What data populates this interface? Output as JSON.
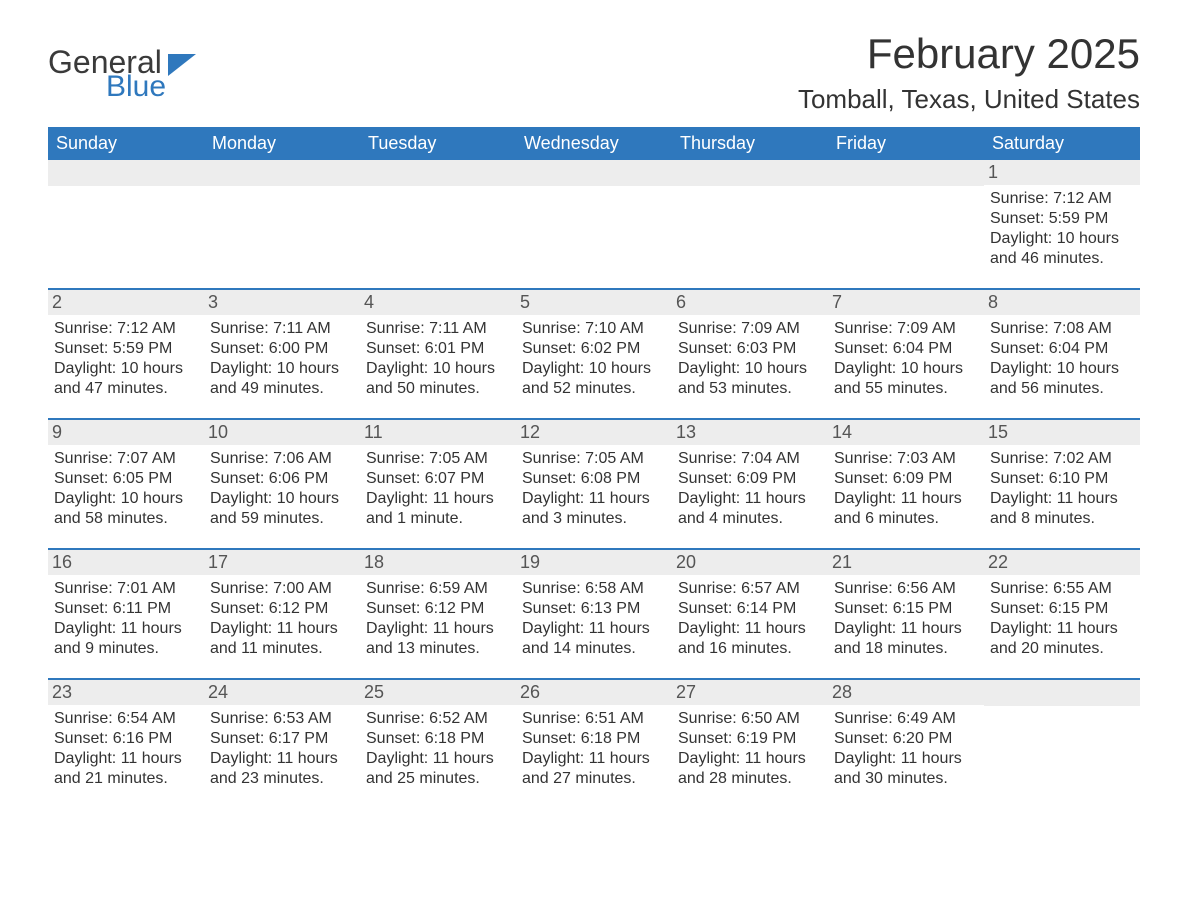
{
  "logo": {
    "text_main": "General",
    "text_sub": "Blue"
  },
  "title": "February 2025",
  "location": "Tomball, Texas, United States",
  "colors": {
    "header_bg": "#2f78bd",
    "header_text": "#ffffff",
    "daynum_bg": "#ededed",
    "text": "#333333",
    "logo_blue": "#2f78bd"
  },
  "day_names": [
    "Sunday",
    "Monday",
    "Tuesday",
    "Wednesday",
    "Thursday",
    "Friday",
    "Saturday"
  ],
  "weeks": [
    [
      {
        "empty": true
      },
      {
        "empty": true
      },
      {
        "empty": true
      },
      {
        "empty": true
      },
      {
        "empty": true
      },
      {
        "empty": true
      },
      {
        "num": "1",
        "sunrise": "Sunrise: 7:12 AM",
        "sunset": "Sunset: 5:59 PM",
        "day1": "Daylight: 10 hours",
        "day2": "and 46 minutes."
      }
    ],
    [
      {
        "num": "2",
        "sunrise": "Sunrise: 7:12 AM",
        "sunset": "Sunset: 5:59 PM",
        "day1": "Daylight: 10 hours",
        "day2": "and 47 minutes."
      },
      {
        "num": "3",
        "sunrise": "Sunrise: 7:11 AM",
        "sunset": "Sunset: 6:00 PM",
        "day1": "Daylight: 10 hours",
        "day2": "and 49 minutes."
      },
      {
        "num": "4",
        "sunrise": "Sunrise: 7:11 AM",
        "sunset": "Sunset: 6:01 PM",
        "day1": "Daylight: 10 hours",
        "day2": "and 50 minutes."
      },
      {
        "num": "5",
        "sunrise": "Sunrise: 7:10 AM",
        "sunset": "Sunset: 6:02 PM",
        "day1": "Daylight: 10 hours",
        "day2": "and 52 minutes."
      },
      {
        "num": "6",
        "sunrise": "Sunrise: 7:09 AM",
        "sunset": "Sunset: 6:03 PM",
        "day1": "Daylight: 10 hours",
        "day2": "and 53 minutes."
      },
      {
        "num": "7",
        "sunrise": "Sunrise: 7:09 AM",
        "sunset": "Sunset: 6:04 PM",
        "day1": "Daylight: 10 hours",
        "day2": "and 55 minutes."
      },
      {
        "num": "8",
        "sunrise": "Sunrise: 7:08 AM",
        "sunset": "Sunset: 6:04 PM",
        "day1": "Daylight: 10 hours",
        "day2": "and 56 minutes."
      }
    ],
    [
      {
        "num": "9",
        "sunrise": "Sunrise: 7:07 AM",
        "sunset": "Sunset: 6:05 PM",
        "day1": "Daylight: 10 hours",
        "day2": "and 58 minutes."
      },
      {
        "num": "10",
        "sunrise": "Sunrise: 7:06 AM",
        "sunset": "Sunset: 6:06 PM",
        "day1": "Daylight: 10 hours",
        "day2": "and 59 minutes."
      },
      {
        "num": "11",
        "sunrise": "Sunrise: 7:05 AM",
        "sunset": "Sunset: 6:07 PM",
        "day1": "Daylight: 11 hours",
        "day2": "and 1 minute."
      },
      {
        "num": "12",
        "sunrise": "Sunrise: 7:05 AM",
        "sunset": "Sunset: 6:08 PM",
        "day1": "Daylight: 11 hours",
        "day2": "and 3 minutes."
      },
      {
        "num": "13",
        "sunrise": "Sunrise: 7:04 AM",
        "sunset": "Sunset: 6:09 PM",
        "day1": "Daylight: 11 hours",
        "day2": "and 4 minutes."
      },
      {
        "num": "14",
        "sunrise": "Sunrise: 7:03 AM",
        "sunset": "Sunset: 6:09 PM",
        "day1": "Daylight: 11 hours",
        "day2": "and 6 minutes."
      },
      {
        "num": "15",
        "sunrise": "Sunrise: 7:02 AM",
        "sunset": "Sunset: 6:10 PM",
        "day1": "Daylight: 11 hours",
        "day2": "and 8 minutes."
      }
    ],
    [
      {
        "num": "16",
        "sunrise": "Sunrise: 7:01 AM",
        "sunset": "Sunset: 6:11 PM",
        "day1": "Daylight: 11 hours",
        "day2": "and 9 minutes."
      },
      {
        "num": "17",
        "sunrise": "Sunrise: 7:00 AM",
        "sunset": "Sunset: 6:12 PM",
        "day1": "Daylight: 11 hours",
        "day2": "and 11 minutes."
      },
      {
        "num": "18",
        "sunrise": "Sunrise: 6:59 AM",
        "sunset": "Sunset: 6:12 PM",
        "day1": "Daylight: 11 hours",
        "day2": "and 13 minutes."
      },
      {
        "num": "19",
        "sunrise": "Sunrise: 6:58 AM",
        "sunset": "Sunset: 6:13 PM",
        "day1": "Daylight: 11 hours",
        "day2": "and 14 minutes."
      },
      {
        "num": "20",
        "sunrise": "Sunrise: 6:57 AM",
        "sunset": "Sunset: 6:14 PM",
        "day1": "Daylight: 11 hours",
        "day2": "and 16 minutes."
      },
      {
        "num": "21",
        "sunrise": "Sunrise: 6:56 AM",
        "sunset": "Sunset: 6:15 PM",
        "day1": "Daylight: 11 hours",
        "day2": "and 18 minutes."
      },
      {
        "num": "22",
        "sunrise": "Sunrise: 6:55 AM",
        "sunset": "Sunset: 6:15 PM",
        "day1": "Daylight: 11 hours",
        "day2": "and 20 minutes."
      }
    ],
    [
      {
        "num": "23",
        "sunrise": "Sunrise: 6:54 AM",
        "sunset": "Sunset: 6:16 PM",
        "day1": "Daylight: 11 hours",
        "day2": "and 21 minutes."
      },
      {
        "num": "24",
        "sunrise": "Sunrise: 6:53 AM",
        "sunset": "Sunset: 6:17 PM",
        "day1": "Daylight: 11 hours",
        "day2": "and 23 minutes."
      },
      {
        "num": "25",
        "sunrise": "Sunrise: 6:52 AM",
        "sunset": "Sunset: 6:18 PM",
        "day1": "Daylight: 11 hours",
        "day2": "and 25 minutes."
      },
      {
        "num": "26",
        "sunrise": "Sunrise: 6:51 AM",
        "sunset": "Sunset: 6:18 PM",
        "day1": "Daylight: 11 hours",
        "day2": "and 27 minutes."
      },
      {
        "num": "27",
        "sunrise": "Sunrise: 6:50 AM",
        "sunset": "Sunset: 6:19 PM",
        "day1": "Daylight: 11 hours",
        "day2": "and 28 minutes."
      },
      {
        "num": "28",
        "sunrise": "Sunrise: 6:49 AM",
        "sunset": "Sunset: 6:20 PM",
        "day1": "Daylight: 11 hours",
        "day2": "and 30 minutes."
      },
      {
        "empty": true
      }
    ]
  ]
}
